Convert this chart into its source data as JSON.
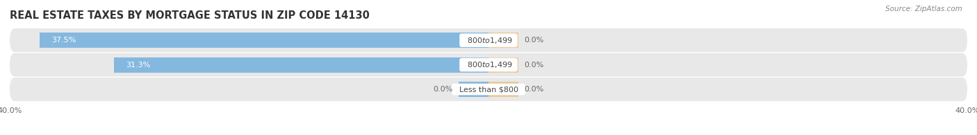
{
  "title": "REAL ESTATE TAXES BY MORTGAGE STATUS IN ZIP CODE 14130",
  "source": "Source: ZipAtlas.com",
  "bars": [
    {
      "label": "Less than $800",
      "without_mortgage": 0.0,
      "with_mortgage": 0.0
    },
    {
      "label": "$800 to $1,499",
      "without_mortgage": 31.3,
      "with_mortgage": 0.0
    },
    {
      "label": "$800 to $1,499",
      "without_mortgage": 37.5,
      "with_mortgage": 0.0
    }
  ],
  "xlim": [
    -40.0,
    40.0
  ],
  "x_tick_labels": [
    "40.0%",
    "40.0%"
  ],
  "color_without": "#85b8de",
  "color_with": "#e8c99a",
  "bar_height": 0.62,
  "row_bg": "#e8e8e8",
  "title_fontsize": 10.5,
  "source_fontsize": 7.5,
  "label_fontsize": 8,
  "tick_fontsize": 8,
  "stub_size": 2.5
}
